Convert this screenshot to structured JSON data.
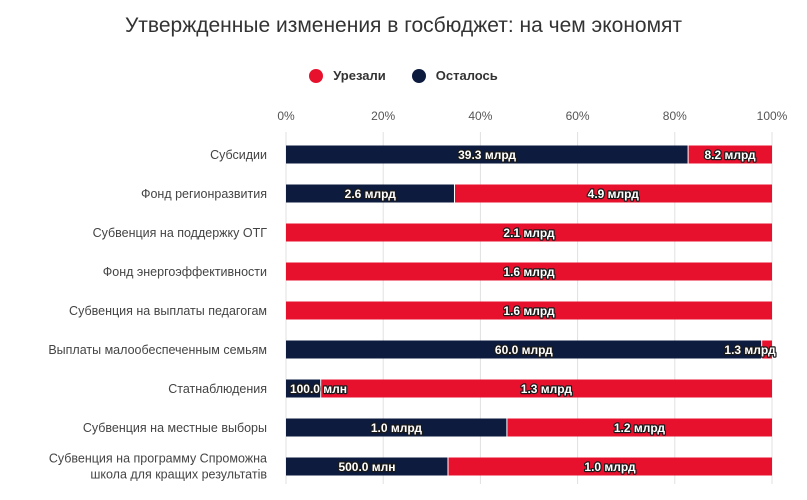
{
  "chart_data": {
    "type": "bar",
    "orientation": "horizontal",
    "stacking": "percent",
    "title": "Утвержденные изменения в госбюджет: на чем экономят",
    "xlabel": "",
    "ylabel": "",
    "xlim": [
      0,
      100
    ],
    "x_ticks": [
      "0%",
      "20%",
      "40%",
      "60%",
      "80%",
      "100%"
    ],
    "grid": true,
    "legend_position": "top",
    "categories": [
      "Субсидии",
      "Фонд регионразвития",
      "Субвенция на поддержку ОТГ",
      "Фонд энергоэффективности",
      "Субвенция на выплаты педагогам",
      "Выплаты малообеспеченным семьям",
      "Статнаблюдения",
      "Субвенция на местные выборы",
      "Субвенция на программу Спроможна школа для кращих результатів"
    ],
    "series": [
      {
        "name": "Осталось",
        "color": "#0d1b3e",
        "values": [
          39.3,
          2.6,
          0,
          0,
          0,
          60.0,
          0.1,
          1.0,
          0.5
        ],
        "labels": [
          "39.3 млрд",
          "2.6 млрд",
          "",
          "",
          "",
          "60.0 млрд",
          "100.0 млн",
          "1.0 млрд",
          "500.0 млн"
        ]
      },
      {
        "name": "Урезали",
        "color": "#e8112d",
        "values": [
          8.2,
          4.9,
          2.1,
          1.6,
          1.6,
          1.3,
          1.3,
          1.2,
          1.0
        ],
        "labels": [
          "8.2 млрд",
          "4.9 млрд",
          "2.1 млрд",
          "1.6 млрд",
          "1.6 млрд",
          "1.3 млрд",
          "1.3 млрд",
          "1.2 млрд",
          "1.0 млрд"
        ]
      }
    ]
  }
}
